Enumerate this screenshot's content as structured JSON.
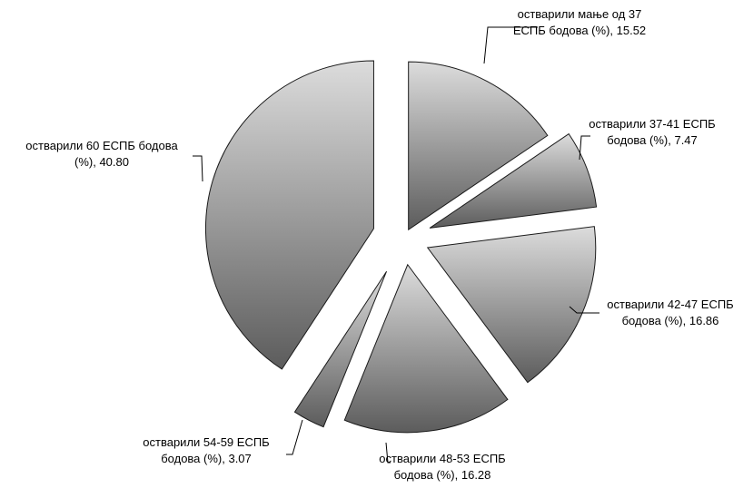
{
  "chart_data": {
    "type": "pie",
    "exploded": true,
    "fill_style": "vertical gradient light-gray to dark-gray",
    "gradient_colors": [
      "#dcdcdc",
      "#5c5c5c"
    ],
    "slices": [
      {
        "label_lines": [
          "остварили мање од 37",
          "ЕСПБ бодова (%), 15.52"
        ],
        "value": 15.52
      },
      {
        "label_lines": [
          "остварили 37-41 ЕСПБ",
          "бодова (%), 7.47"
        ],
        "value": 7.47
      },
      {
        "label_lines": [
          "остварили 42-47 ЕСПБ",
          "бодова (%), 16.86"
        ],
        "value": 16.86
      },
      {
        "label_lines": [
          "остварили 48-53 ЕСПБ",
          "бодова (%), 16.28"
        ],
        "value": 16.28
      },
      {
        "label_lines": [
          "остварили 54-59 ЕСПБ",
          "бодова (%), 3.07"
        ],
        "value": 3.07
      },
      {
        "label_lines": [
          "остварили 60 ЕСПБ бодова",
          "(%), 40.80"
        ],
        "value": 40.8
      }
    ]
  }
}
